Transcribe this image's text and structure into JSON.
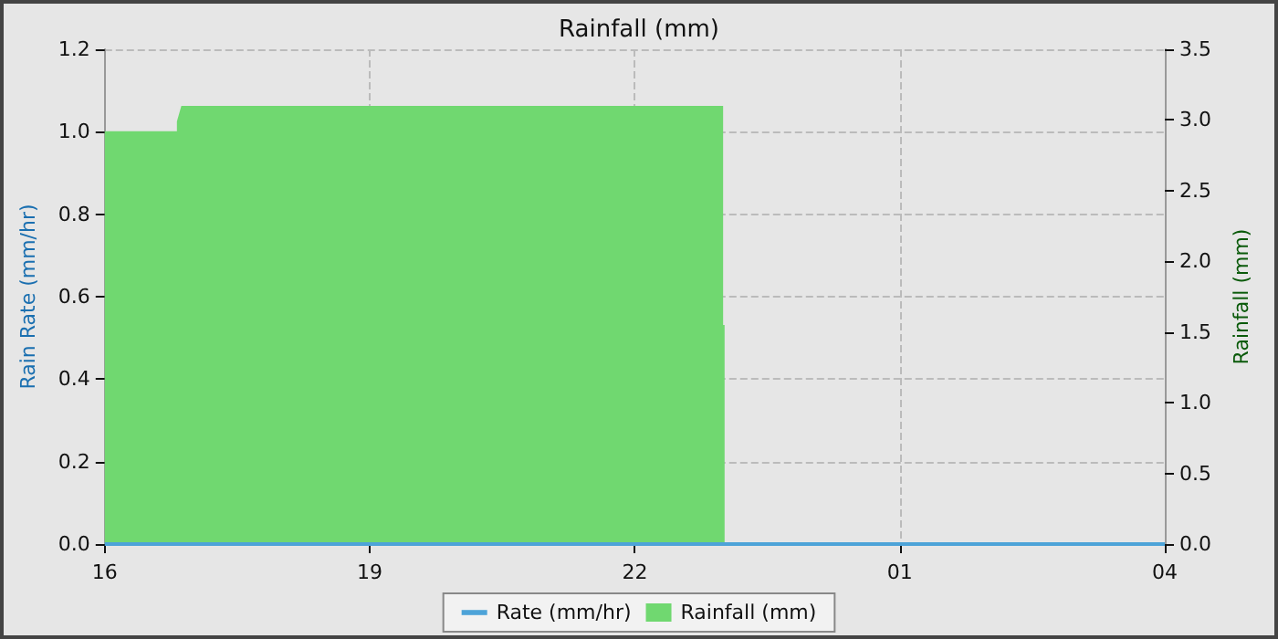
{
  "chart_data": {
    "type": "line",
    "title": "Rainfall (mm)",
    "ylabel": "Rain Rate (mm/hr)",
    "y2label": "Rainfall (mm)",
    "xlim": [
      "--01-01T16:00",
      "--01-02T04:00"
    ],
    "xticks": [
      {
        "value": "--01-01T16:00",
        "label": "16"
      },
      {
        "value": "--01-01T19:00",
        "label": "19"
      },
      {
        "value": "--01-01T22:00",
        "label": "22"
      },
      {
        "value": "--01-02T01:00",
        "label": "01"
      },
      {
        "value": "--01-02T04:00",
        "label": "04"
      }
    ],
    "ylim": [
      0,
      1.2
    ],
    "yticks": [
      {
        "value": 0,
        "label": "0.0"
      },
      {
        "value": 0.2,
        "label": "0.2"
      },
      {
        "value": 0.4,
        "label": "0.4"
      },
      {
        "value": 0.6,
        "label": "0.6"
      },
      {
        "value": 0.8,
        "label": "0.8"
      },
      {
        "value": 1,
        "label": "1.0"
      },
      {
        "value": 1.2,
        "label": "1.2"
      }
    ],
    "y2lim": [
      0,
      3.5
    ],
    "y2ticks": [
      {
        "value": 0,
        "label": "0.0"
      },
      {
        "value": 0.5,
        "label": "0.5"
      },
      {
        "value": 1,
        "label": "1.0"
      },
      {
        "value": 1.5,
        "label": "1.5"
      },
      {
        "value": 2,
        "label": "2.0"
      },
      {
        "value": 2.5,
        "label": "2.5"
      },
      {
        "value": 3,
        "label": "3.0"
      },
      {
        "value": 3.5,
        "label": "3.5"
      }
    ],
    "series": [
      {
        "name": "Rate (mm/hr)",
        "type": "line",
        "color": "#4da3d8",
        "x": [
          "--01-01T16:00",
          "--01-02T04:00"
        ],
        "values": [
          0,
          0
        ]
      },
      {
        "name": "Rainfall (mm)",
        "type": "area",
        "axis": "y2",
        "color": "#70d870",
        "x": [
          "--01-01T16:00",
          "--01-01T16:49",
          "--01-01T16:49",
          "--01-01T16:52",
          "--01-01T23:00",
          "--01-01T23:00",
          "--01-01T23:01",
          "--01-01T23:01",
          "--01-02T04:00"
        ],
        "values": [
          2.92,
          2.92,
          2.99,
          3.1,
          3.1,
          1.55,
          1.55,
          0,
          0
        ]
      }
    ],
    "grid": true,
    "legend": "bottom",
    "marker": "none"
  }
}
